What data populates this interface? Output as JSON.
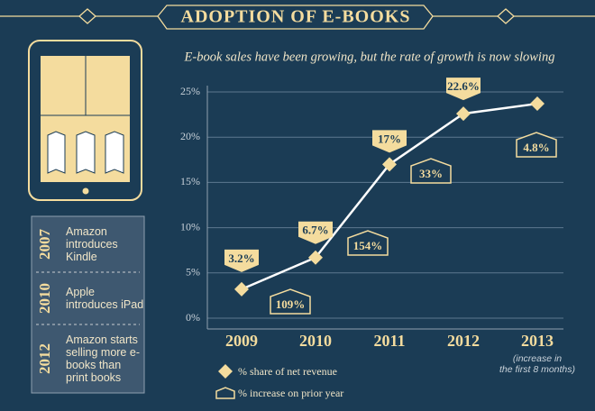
{
  "chart_data": {
    "type": "line",
    "title": "ADOPTION OF E-BOOKS",
    "subtitle": "E-book sales have been growing, but the rate of growth is now slowing",
    "categories": [
      "2009",
      "2010",
      "2011",
      "2012",
      "2013"
    ],
    "note": "(increase in the first 8 months)",
    "series": [
      {
        "name": "% share of net revenue",
        "color": "#f4dc9e",
        "values": [
          3.2,
          6.7,
          17,
          22.6,
          23.7
        ],
        "value_labels": [
          "3.2%",
          "6.7%",
          "17%",
          "22.6%",
          null
        ]
      },
      {
        "name": "% increase on prior year",
        "color": "#f4dc9e",
        "values": [
          null,
          109,
          154,
          33,
          4.8
        ],
        "value_labels": [
          null,
          "109%",
          "154%",
          "33%",
          "4.8%"
        ]
      }
    ],
    "ylim": [
      0,
      25
    ],
    "yticks": [
      {
        "value": 0,
        "label": "0%"
      },
      {
        "value": 5,
        "label": "5%"
      },
      {
        "value": 10,
        "label": "10%"
      },
      {
        "value": 15,
        "label": "15%"
      },
      {
        "value": 20,
        "label": "20%"
      },
      {
        "value": 25,
        "label": "25%"
      }
    ],
    "grid": true
  },
  "timeline": [
    {
      "year": "2007",
      "text": "Amazon introduces Kindle"
    },
    {
      "year": "2010",
      "text": "Apple introduces iPad"
    },
    {
      "year": "2012",
      "text": "Amazon starts selling more e-books than print books"
    }
  ]
}
